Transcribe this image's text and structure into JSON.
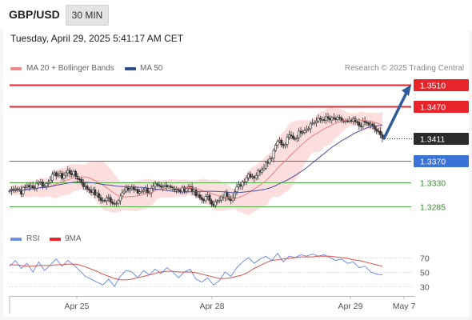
{
  "header": {
    "pair": "GBP/USD",
    "timeframe": "30 MIN"
  },
  "timestamp": "Tuesday, April 29, 2025 5:41:17 AM CET",
  "legend": {
    "ma_bb": "MA 20 + Bollinger Bands",
    "ma50": "MA 50",
    "credit": "Research © 2025 Trading Central"
  },
  "rsi_legend": {
    "rsi": "RSI",
    "ma": "9MA"
  },
  "colors": {
    "resistance": "#e8232a",
    "support": "#3a72d6",
    "support_green": "#4fae48",
    "candle": "#333333",
    "bb_fill": "#fcd3d3",
    "ma20": "#e88080",
    "ma50": "#4a4f9a",
    "rsi": "#6f8fe0",
    "rsi_ma": "#d9534f",
    "arrow": "#2e5a9c"
  },
  "chart_data": {
    "type": "line",
    "title": "GBP/USD 30 MIN",
    "x_ticks": [
      "Apr 25",
      "Apr 28",
      "Apr 29",
      "May 7"
    ],
    "price_axis": {
      "ylim": [
        1.3255,
        1.353
      ],
      "current_price": {
        "label": "1.3411",
        "value": 1.3411
      },
      "levels": [
        {
          "label": "1.3510",
          "value": 1.351,
          "kind": "resistance",
          "style": "box"
        },
        {
          "label": "1.3470",
          "value": 1.347,
          "kind": "resistance",
          "style": "box"
        },
        {
          "label": "1.3370",
          "value": 1.337,
          "kind": "support",
          "style": "box"
        },
        {
          "label": "1.3330",
          "value": 1.333,
          "kind": "support_green",
          "style": "text"
        },
        {
          "label": "1.3285",
          "value": 1.3285,
          "kind": "support_green",
          "style": "text"
        }
      ]
    },
    "close_path": [
      1.3314,
      1.332,
      1.3312,
      1.3325,
      1.3318,
      1.3332,
      1.3322,
      1.3338,
      1.3345,
      1.334,
      1.335,
      1.3345,
      1.3335,
      1.332,
      1.3315,
      1.3305,
      1.3295,
      1.33,
      1.329,
      1.3305,
      1.3315,
      1.332,
      1.331,
      1.3318,
      1.3312,
      1.3322,
      1.3318,
      1.3326,
      1.332,
      1.3312,
      1.3318,
      1.3322,
      1.3305,
      1.3298,
      1.3302,
      1.329,
      1.3295,
      1.3308,
      1.33,
      1.3318,
      1.333,
      1.3345,
      1.334,
      1.3352,
      1.3365,
      1.3378,
      1.341,
      1.3395,
      1.3415,
      1.3412,
      1.3425,
      1.343,
      1.344,
      1.3444,
      1.3448,
      1.3445,
      1.3446,
      1.3444,
      1.344,
      1.3443,
      1.3435,
      1.344,
      1.3435,
      1.3425,
      1.3411
    ],
    "projection": {
      "from": 1.3411,
      "to": 1.351
    },
    "rsi_panel": {
      "levels": [
        70,
        50,
        30
      ],
      "ylim": [
        20,
        80
      ],
      "rsi": [
        58,
        66,
        55,
        62,
        50,
        64,
        52,
        60,
        68,
        58,
        66,
        60,
        52,
        44,
        40,
        36,
        32,
        40,
        30,
        44,
        52,
        50,
        42,
        52,
        46,
        54,
        48,
        56,
        50,
        42,
        50,
        54,
        40,
        36,
        42,
        32,
        38,
        50,
        44,
        56,
        64,
        70,
        62,
        68,
        72,
        66,
        76,
        64,
        72,
        70,
        74,
        72,
        75,
        72,
        74,
        70,
        66,
        68,
        62,
        64,
        56,
        58,
        50,
        47,
        46
      ],
      "ma9": [
        60,
        60,
        59,
        58,
        58,
        59,
        59,
        59,
        60,
        60,
        61,
        61,
        60,
        57,
        54,
        51,
        47,
        44,
        41,
        39,
        39,
        40,
        42,
        44,
        46,
        48,
        50,
        51,
        51,
        50,
        50,
        50,
        49,
        47,
        45,
        43,
        41,
        41,
        42,
        44,
        46,
        50,
        55,
        59,
        63,
        66,
        67,
        68,
        69,
        70,
        71,
        71,
        71,
        72,
        72,
        72,
        71,
        70,
        69,
        67,
        66,
        64,
        62,
        60,
        58
      ]
    }
  }
}
